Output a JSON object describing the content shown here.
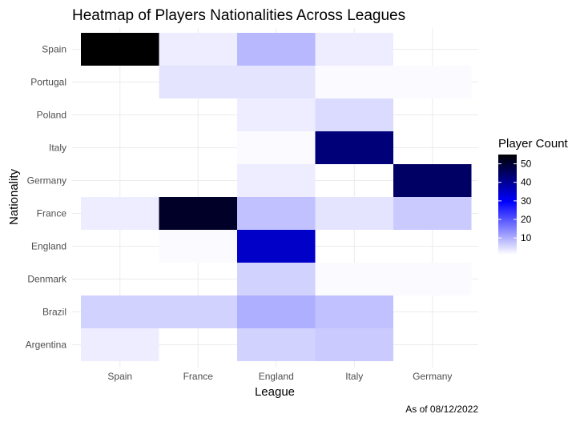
{
  "chart_data": {
    "type": "heatmap",
    "title": "Heatmap of Players Nationalities Across Leagues",
    "xlabel": "League",
    "ylabel": "Nationality",
    "x_categories": [
      "Spain",
      "France",
      "England",
      "Italy",
      "Germany"
    ],
    "y_categories": [
      "Spain",
      "Portugal",
      "Poland",
      "Italy",
      "Germany",
      "France",
      "England",
      "Denmark",
      "Brazil",
      "Argentina"
    ],
    "cells": [
      {
        "x": "Spain",
        "y": "Spain",
        "value": 55
      },
      {
        "x": "France",
        "y": "Spain",
        "value": 3
      },
      {
        "x": "England",
        "y": "Spain",
        "value": 9
      },
      {
        "x": "Italy",
        "y": "Spain",
        "value": 3
      },
      {
        "x": "France",
        "y": "Portugal",
        "value": 4
      },
      {
        "x": "England",
        "y": "Portugal",
        "value": 4
      },
      {
        "x": "Italy",
        "y": "Portugal",
        "value": 1.5
      },
      {
        "x": "Germany",
        "y": "Portugal",
        "value": 1.5
      },
      {
        "x": "England",
        "y": "Poland",
        "value": 3
      },
      {
        "x": "Italy",
        "y": "Poland",
        "value": 5
      },
      {
        "x": "England",
        "y": "Italy",
        "value": 1.5
      },
      {
        "x": "Italy",
        "y": "Italy",
        "value": 43
      },
      {
        "x": "England",
        "y": "Germany",
        "value": 3
      },
      {
        "x": "Germany",
        "y": "Germany",
        "value": 45
      },
      {
        "x": "Spain",
        "y": "France",
        "value": 3
      },
      {
        "x": "France",
        "y": "France",
        "value": 51
      },
      {
        "x": "England",
        "y": "France",
        "value": 8
      },
      {
        "x": "Italy",
        "y": "France",
        "value": 4
      },
      {
        "x": "Germany",
        "y": "France",
        "value": 7
      },
      {
        "x": "France",
        "y": "England",
        "value": 1.5
      },
      {
        "x": "England",
        "y": "England",
        "value": 35
      },
      {
        "x": "England",
        "y": "Denmark",
        "value": 6
      },
      {
        "x": "Italy",
        "y": "Denmark",
        "value": 1.5
      },
      {
        "x": "Germany",
        "y": "Denmark",
        "value": 1.5
      },
      {
        "x": "Spain",
        "y": "Brazil",
        "value": 6
      },
      {
        "x": "France",
        "y": "Brazil",
        "value": 6
      },
      {
        "x": "England",
        "y": "Brazil",
        "value": 10
      },
      {
        "x": "Italy",
        "y": "Brazil",
        "value": 8
      },
      {
        "x": "Spain",
        "y": "Argentina",
        "value": 3
      },
      {
        "x": "England",
        "y": "Argentina",
        "value": 6
      },
      {
        "x": "Italy",
        "y": "Argentina",
        "value": 7
      }
    ],
    "legend": {
      "title": "Player Count",
      "ticks": [
        10,
        20,
        30,
        40,
        50
      ],
      "range": [
        1,
        55
      ],
      "placement": "right",
      "colors": [
        "#ffffff",
        "#0000ff",
        "#000000"
      ]
    },
    "grid": true
  },
  "caption": "As of 08/12/2022"
}
